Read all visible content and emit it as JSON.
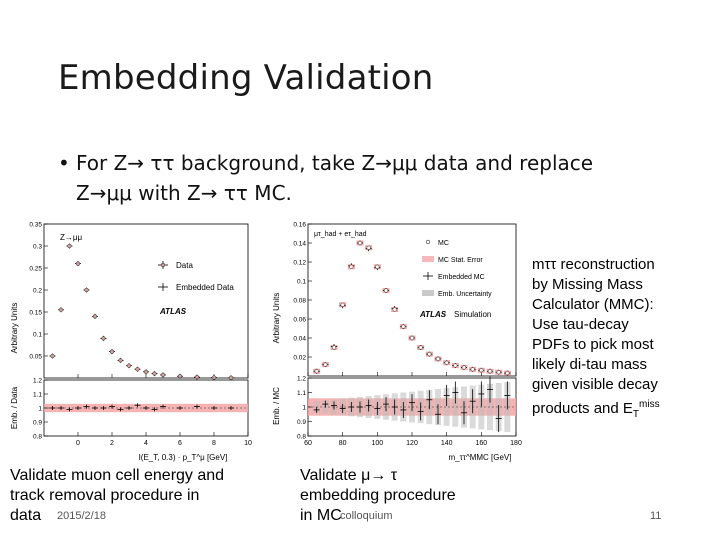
{
  "slide": {
    "title": "Embedding Validation",
    "bullet_line1": "For Z→ ττ background, take Z→μμ data and replace",
    "bullet_line2": "Z→μμ with Z→ ττ MC.",
    "bullet_symbol": "•"
  },
  "left_plot": {
    "ylabel_top": "Arbitrary Units",
    "ylabel_bottom": "Emb. / Data",
    "xlabel": "I(E_T, 0.3) · p_T^μ [GeV]",
    "process": "Z→μμ",
    "legend_data": "Data",
    "legend_emb": "Embedded Data",
    "atlas": "ATLAS",
    "yticks_top": [
      "0.35",
      "0.3",
      "0.25",
      "0.2",
      "0.15",
      "0.1",
      "0.05"
    ],
    "yticks_bottom": [
      "1.2",
      "1.1",
      "1",
      "0.9",
      "0.8"
    ],
    "xticks": [
      "0",
      "2",
      "4",
      "6",
      "8",
      "10"
    ]
  },
  "right_plot": {
    "ylabel_top": "Arbitrary Units",
    "ylabel_bottom": "Emb. / MC",
    "xlabel": "m_ττ^MMC [GeV]",
    "process": "μτ_had + eτ_had",
    "legend_mc": "MC",
    "legend_stat": "MC Stat. Error",
    "legend_emb": "Embedded MC",
    "legend_unc": "Emb. Uncertainty",
    "atlas": "ATLAS",
    "atlas_sim": "Simulation",
    "yticks_top": [
      "0.16",
      "0.14",
      "0.12",
      "0.1",
      "0.08",
      "0.06",
      "0.04",
      "0.02"
    ],
    "yticks_bottom": [
      "1.2",
      "1.1",
      "1",
      "0.9",
      "0.8"
    ],
    "xticks": [
      "60",
      "80",
      "100",
      "120",
      "140",
      "160",
      "180"
    ]
  },
  "side_note": {
    "line1": "mττ reconstruction",
    "line2": "by Missing Mass",
    "line3": "Calculator (MMC):",
    "line4": " Use tau-decay",
    "line5": "PDFs to pick most",
    "line6": "likely di-tau mass",
    "line7": "given visible decay",
    "line8_pre": "products and E",
    "line8_sub": "T",
    "line8_sup": "miss"
  },
  "captions": {
    "left_line1": "Validate muon cell energy and",
    "left_line2": "track removal procedure in",
    "left_line3": "data",
    "right_line1": "Validate μ→ τ",
    "right_line2": "embedding procedure",
    "right_line3": "in MC"
  },
  "footer": {
    "date": "2015/2/18",
    "center": "colloquium",
    "page": "11"
  },
  "chart_data": [
    {
      "type": "scatter",
      "title": "",
      "xlabel": "I(E_T, 0.3) · p_T^μ [GeV]",
      "ylabel": "Arbitrary Units",
      "xlim": [
        -2,
        10
      ],
      "ylim": [
        0,
        0.35
      ],
      "x": [
        -1.5,
        -1.0,
        -0.5,
        0.0,
        0.5,
        1.0,
        1.5,
        2.0,
        2.5,
        3.0,
        3.5,
        4.0,
        4.5,
        5.0,
        6.0,
        7.0,
        8.0,
        9.0
      ],
      "series": [
        {
          "name": "Data",
          "values": [
            0.05,
            0.155,
            0.3,
            0.26,
            0.2,
            0.14,
            0.09,
            0.06,
            0.04,
            0.028,
            0.02,
            0.014,
            0.01,
            0.007,
            0.004,
            0.002,
            0.001,
            0.0005
          ]
        },
        {
          "name": "Embedded Data",
          "values": [
            0.05,
            0.155,
            0.3,
            0.26,
            0.2,
            0.14,
            0.09,
            0.06,
            0.04,
            0.028,
            0.02,
            0.014,
            0.01,
            0.007,
            0.004,
            0.002,
            0.001,
            0.0005
          ]
        }
      ],
      "ratio": {
        "ylabel": "Emb. / Data",
        "ylim": [
          0.8,
          1.2
        ],
        "values": [
          1.0,
          1.0,
          0.99,
          1.0,
          1.01,
          1.0,
          1.0,
          1.01,
          0.99,
          1.0,
          1.02,
          1.0,
          0.99,
          1.01,
          1.0,
          1.01,
          1.0,
          1.0
        ]
      }
    },
    {
      "type": "scatter",
      "title": "",
      "xlabel": "m_ττ^MMC [GeV]",
      "ylabel": "Arbitrary Units",
      "xlim": [
        60,
        180
      ],
      "ylim": [
        0,
        0.16
      ],
      "x": [
        65,
        70,
        75,
        80,
        85,
        90,
        95,
        100,
        105,
        110,
        115,
        120,
        125,
        130,
        135,
        140,
        145,
        150,
        155,
        160,
        165,
        170,
        175
      ],
      "series": [
        {
          "name": "MC",
          "values": [
            0.005,
            0.012,
            0.03,
            0.075,
            0.115,
            0.14,
            0.135,
            0.115,
            0.09,
            0.07,
            0.052,
            0.04,
            0.03,
            0.023,
            0.018,
            0.014,
            0.011,
            0.009,
            0.007,
            0.006,
            0.005,
            0.004,
            0.003
          ]
        },
        {
          "name": "Embedded MC",
          "values": [
            0.005,
            0.012,
            0.031,
            0.074,
            0.116,
            0.14,
            0.134,
            0.114,
            0.09,
            0.071,
            0.052,
            0.04,
            0.03,
            0.023,
            0.018,
            0.014,
            0.011,
            0.009,
            0.007,
            0.006,
            0.005,
            0.004,
            0.003
          ]
        }
      ],
      "ratio": {
        "ylabel": "Emb. / MC",
        "ylim": [
          0.8,
          1.2
        ],
        "values": [
          0.98,
          1.02,
          1.01,
          0.99,
          1.0,
          1.0,
          1.01,
          0.99,
          1.02,
          1.0,
          0.98,
          1.03,
          0.97,
          1.05,
          0.95,
          1.08,
          1.1,
          0.96,
          1.04,
          1.09,
          1.12,
          0.92,
          1.08
        ]
      }
    }
  ]
}
